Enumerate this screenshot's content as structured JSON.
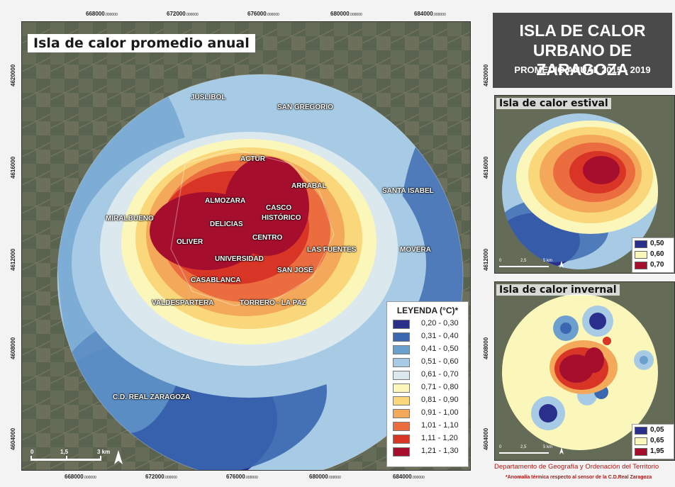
{
  "main_map": {
    "title": "Isla de calor promedio anual",
    "x_coords": [
      "668000",
      "672000",
      "676000",
      "680000",
      "684000"
    ],
    "x_coord_suffix": ".000000",
    "y_coords": [
      "4620000",
      "4616000",
      "4612000",
      "4608000",
      "4604000"
    ],
    "scalebar": {
      "labels": [
        "0",
        "1,5",
        "3 km"
      ]
    },
    "places": [
      "JUSLIBOL",
      "SAN GREGORIO",
      "ACTUR",
      "ARRABAL",
      "SANTA ISABEL",
      "ALMOZARA",
      "CASCO",
      "HISTÓRICO",
      "MIRALBUENO",
      "DELICIAS",
      "CENTRO",
      "OLIVER",
      "LAS FUENTES",
      "MOVERA",
      "UNIVERSIDAD",
      "SAN JOSÉ",
      "CASABLANCA",
      "VALDESPARTERA",
      "TORRERO - LA PAZ",
      "C.D. REAL ZARAGOZA"
    ]
  },
  "legend": {
    "title": "LEYENDA (°C)*",
    "items": [
      {
        "label": "0,20 -  0,30",
        "color": "#2b2f8c"
      },
      {
        "label": "0,31 -  0,40",
        "color": "#3a67b0"
      },
      {
        "label": "0,41 -  0,50",
        "color": "#6b9fce"
      },
      {
        "label": "0,51 -  0,60",
        "color": "#a7cbe4"
      },
      {
        "label": "0,61 -  0,70",
        "color": "#dbe9ef"
      },
      {
        "label": "0,71 -  0,80",
        "color": "#fbf7bb"
      },
      {
        "label": "0,81 -  0,90",
        "color": "#f9d77a"
      },
      {
        "label": "0,91 -  1,00",
        "color": "#f4a95a"
      },
      {
        "label": "1,01 -  1,10",
        "color": "#eb6d3f"
      },
      {
        "label": "1,11 -  1,20",
        "color": "#d83527"
      },
      {
        "label": "1,21 -  1,30",
        "color": "#a50f2d"
      }
    ]
  },
  "panel": {
    "line1": "ISLA DE CALOR",
    "line2": "URBANO DE ZARAGOZA",
    "line3": "PROMEDIO ANUAL 2015 - 2019"
  },
  "summer": {
    "title": "Isla de calor estival",
    "legend": [
      {
        "label": "0,50",
        "color": "#2b2f8c"
      },
      {
        "label": "0,60",
        "color": "#fbf7bb"
      },
      {
        "label": "0,70",
        "color": "#a50f2d"
      }
    ],
    "scalebar": [
      "0",
      "2,5",
      "5 km"
    ]
  },
  "winter": {
    "title": "Isla de calor invernal",
    "legend": [
      {
        "label": "0,05",
        "color": "#2b2f8c"
      },
      {
        "label": "0,65",
        "color": "#fbf7bb"
      },
      {
        "label": "1,95",
        "color": "#a50f2d"
      }
    ],
    "scalebar": [
      "0",
      "2,5",
      "5 km"
    ]
  },
  "side_y_coords": [
    "4620000",
    "4616000",
    "4612000",
    "4608000",
    "4604000"
  ],
  "credit": "Departamento de Geografía y Ordenación del Territorio",
  "note": "*Anomalía térmica respecto al sensor de la C.D.Real Zaragoza"
}
